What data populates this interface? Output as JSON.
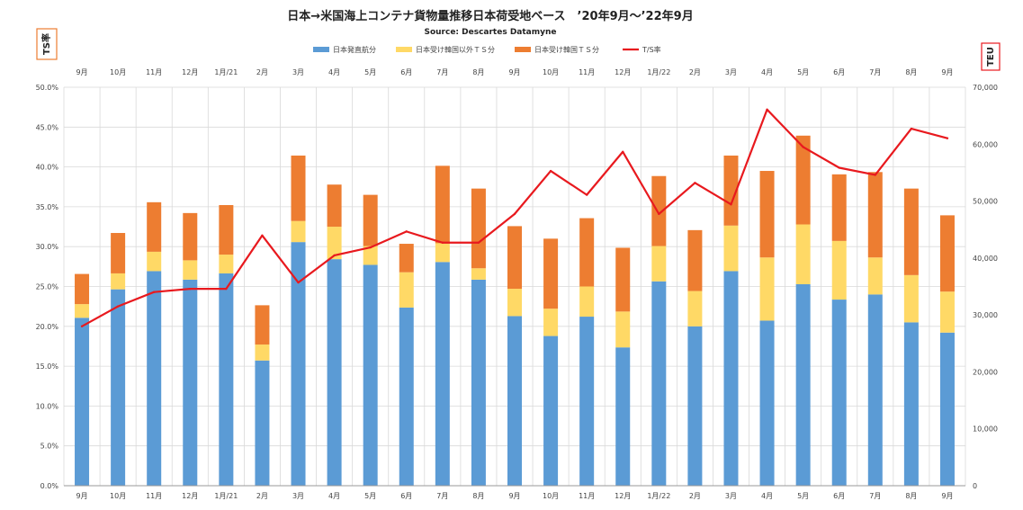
{
  "chart_data": {
    "type": "bar",
    "title": "日本→米国海上コンテナ貨物量推移日本荷受地ベース　’20年9月～’22年9月",
    "subtitle": "Source: Descartes Datamyne",
    "left_axis_tag": "TS率",
    "right_axis_tag": "TEU",
    "categories": [
      "9月",
      "10月",
      "11月",
      "12月",
      "1月/21",
      "2月",
      "3月",
      "4月",
      "5月",
      "6月",
      "7月",
      "8月",
      "9月",
      "10月",
      "11月",
      "12月",
      "1月/22",
      "2月",
      "3月",
      "4月",
      "5月",
      "6月",
      "7月",
      "8月",
      "9月"
    ],
    "series": [
      {
        "name": "日本発直航分",
        "color": "#5B9BD5",
        "values": [
          29500,
          34500,
          37700,
          36200,
          37300,
          22000,
          42800,
          39800,
          38800,
          31300,
          39300,
          36200,
          29800,
          26300,
          29700,
          24300,
          35900,
          28000,
          37700,
          29000,
          35400,
          32700,
          33600,
          28700,
          26900
        ]
      },
      {
        "name": "日本受け韓国以外ＴＳ分",
        "color": "#FFD966",
        "values": [
          2400,
          2800,
          3400,
          3400,
          3300,
          2800,
          3700,
          5700,
          3300,
          6200,
          3300,
          2000,
          4800,
          4800,
          5300,
          6300,
          6200,
          6200,
          8000,
          11100,
          10500,
          10300,
          6500,
          8300,
          7200
        ]
      },
      {
        "name": "日本受け韓国ＴＳ分",
        "color": "#ED7D31",
        "values": [
          5300,
          7100,
          8700,
          8300,
          8700,
          6900,
          11500,
          7400,
          9000,
          5000,
          13600,
          14000,
          11000,
          12300,
          12000,
          11200,
          12300,
          10700,
          12300,
          15200,
          15600,
          11700,
          15000,
          15200,
          13400
        ]
      }
    ],
    "line_series": {
      "name": "T/S率",
      "color": "#E8191E",
      "axis": "left",
      "values": [
        20.0,
        22.5,
        24.3,
        24.7,
        24.7,
        31.4,
        25.5,
        28.9,
        29.9,
        31.9,
        30.5,
        30.5,
        34.1,
        39.5,
        36.5,
        41.9,
        34.1,
        38.0,
        35.3,
        47.2,
        42.5,
        39.9,
        39.0,
        44.8,
        43.6
      ]
    },
    "y_left": {
      "min": 0,
      "max": 50,
      "step": 5,
      "format": "percent"
    },
    "y_right": {
      "min": 0,
      "max": 70000,
      "step": 10000
    },
    "legend_position": "top-center",
    "grid": true
  }
}
